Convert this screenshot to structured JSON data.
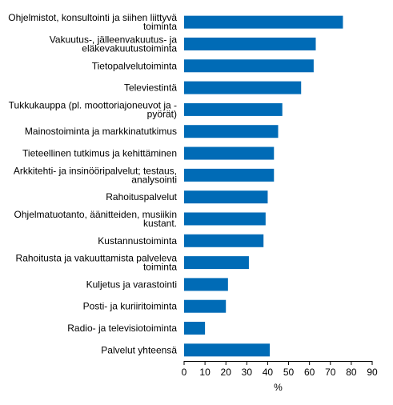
{
  "chart_data": {
    "type": "bar",
    "orientation": "horizontal",
    "categories": [
      [
        "Ohjelmistot, konsultointi ja siihen liittyvä",
        "toiminta"
      ],
      [
        "Vakuutus-, jälleenvakuutus- ja",
        "eläkevakuutustoiminta"
      ],
      [
        "Tietopalvelutoiminta"
      ],
      [
        "Televiestintä"
      ],
      [
        "Tukkukauppa (pl. moottoriajoneuvot ja -",
        "pyörät)"
      ],
      [
        "Mainostoiminta ja markkinatutkimus"
      ],
      [
        "Tieteellinen tutkimus ja kehittäminen"
      ],
      [
        "Arkkitehti- ja insinööripalvelut; testaus,",
        "analysointi"
      ],
      [
        "Rahoituspalvelut"
      ],
      [
        "Ohjelmatuotanto, äänitteiden, musiikin",
        "kustant."
      ],
      [
        "Kustannustoiminta"
      ],
      [
        "Rahoitusta ja vakuuttamista palveleva",
        "toiminta"
      ],
      [
        "Kuljetus ja varastointi"
      ],
      [
        "Posti- ja kuriiritoiminta"
      ],
      [
        "Radio- ja televisiotoiminta"
      ],
      [
        "Palvelut yhteensä"
      ]
    ],
    "values": [
      76,
      63,
      62,
      56,
      47,
      45,
      43,
      43,
      40,
      39,
      38,
      31,
      21,
      20,
      10,
      41
    ],
    "xlabel": "%",
    "xlim": [
      0,
      90
    ],
    "xticks": [
      "0",
      "10",
      "20",
      "30",
      "40",
      "50",
      "60",
      "70",
      "80",
      "90"
    ],
    "bar_color": "#006bb6",
    "grid": false,
    "legend": "none"
  }
}
